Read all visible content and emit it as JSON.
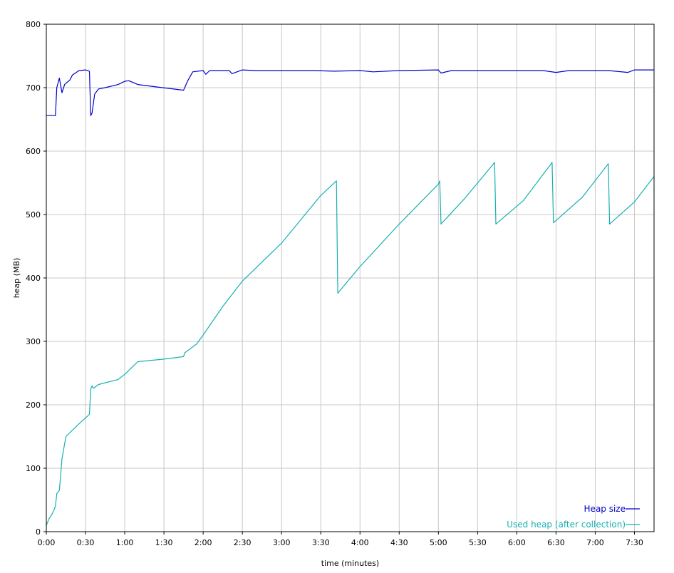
{
  "chart_data": {
    "type": "line",
    "title": "",
    "xlabel": "time (minutes)",
    "ylabel": "heap (MB)",
    "xlim": [
      0,
      465
    ],
    "ylim": [
      0,
      800
    ],
    "grid": true,
    "legend_position": "bottom-right",
    "x_ticks": [
      {
        "value": 0,
        "label": "0:00"
      },
      {
        "value": 30,
        "label": "0:30"
      },
      {
        "value": 60,
        "label": "1:00"
      },
      {
        "value": 90,
        "label": "1:30"
      },
      {
        "value": 120,
        "label": "2:00"
      },
      {
        "value": 150,
        "label": "2:30"
      },
      {
        "value": 180,
        "label": "3:00"
      },
      {
        "value": 210,
        "label": "3:30"
      },
      {
        "value": 240,
        "label": "4:00"
      },
      {
        "value": 270,
        "label": "4:30"
      },
      {
        "value": 300,
        "label": "5:00"
      },
      {
        "value": 330,
        "label": "5:30"
      },
      {
        "value": 360,
        "label": "6:00"
      },
      {
        "value": 390,
        "label": "6:30"
      },
      {
        "value": 420,
        "label": "7:00"
      },
      {
        "value": 450,
        "label": "7:30"
      }
    ],
    "y_ticks": [
      {
        "value": 0,
        "label": "0"
      },
      {
        "value": 100,
        "label": "100"
      },
      {
        "value": 200,
        "label": "200"
      },
      {
        "value": 300,
        "label": "300"
      },
      {
        "value": 400,
        "label": "400"
      },
      {
        "value": 500,
        "label": "500"
      },
      {
        "value": 600,
        "label": "600"
      },
      {
        "value": 700,
        "label": "700"
      },
      {
        "value": 800,
        "label": "800"
      }
    ],
    "series": [
      {
        "name": "Heap size",
        "color": "#0000cc",
        "points": [
          [
            0,
            656
          ],
          [
            7,
            656
          ],
          [
            8,
            700
          ],
          [
            10,
            715
          ],
          [
            12,
            692
          ],
          [
            14,
            705
          ],
          [
            18,
            712
          ],
          [
            20,
            720
          ],
          [
            25,
            727
          ],
          [
            30,
            728
          ],
          [
            33,
            726
          ],
          [
            34,
            656
          ],
          [
            35,
            660
          ],
          [
            37,
            690
          ],
          [
            40,
            698
          ],
          [
            45,
            700
          ],
          [
            55,
            705
          ],
          [
            60,
            710
          ],
          [
            63,
            711
          ],
          [
            70,
            705
          ],
          [
            85,
            701
          ],
          [
            105,
            696
          ],
          [
            108,
            710
          ],
          [
            112,
            725
          ],
          [
            120,
            727
          ],
          [
            122,
            721
          ],
          [
            125,
            727
          ],
          [
            140,
            727
          ],
          [
            142,
            722
          ],
          [
            150,
            728
          ],
          [
            160,
            727
          ],
          [
            180,
            727
          ],
          [
            205,
            727
          ],
          [
            220,
            726
          ],
          [
            240,
            727
          ],
          [
            250,
            725
          ],
          [
            270,
            727
          ],
          [
            300,
            728
          ],
          [
            302,
            723
          ],
          [
            310,
            727
          ],
          [
            340,
            727
          ],
          [
            360,
            727
          ],
          [
            380,
            727
          ],
          [
            390,
            724
          ],
          [
            400,
            727
          ],
          [
            430,
            727
          ],
          [
            445,
            724
          ],
          [
            450,
            728
          ],
          [
            465,
            728
          ]
        ]
      },
      {
        "name": "Used heap (after collection)",
        "color": "#17b0b0",
        "points": [
          [
            0,
            10
          ],
          [
            2,
            20
          ],
          [
            5,
            30
          ],
          [
            7,
            40
          ],
          [
            8,
            60
          ],
          [
            10,
            65
          ],
          [
            11,
            90
          ],
          [
            12,
            115
          ],
          [
            15,
            150
          ],
          [
            20,
            160
          ],
          [
            25,
            170
          ],
          [
            33,
            185
          ],
          [
            34,
            225
          ],
          [
            35,
            230
          ],
          [
            36,
            226
          ],
          [
            40,
            232
          ],
          [
            55,
            240
          ],
          [
            60,
            248
          ],
          [
            65,
            258
          ],
          [
            70,
            268
          ],
          [
            90,
            272
          ],
          [
            105,
            276
          ],
          [
            106,
            282
          ],
          [
            115,
            296
          ],
          [
            120,
            310
          ],
          [
            135,
            355
          ],
          [
            150,
            395
          ],
          [
            180,
            455
          ],
          [
            210,
            530
          ],
          [
            222,
            553
          ],
          [
            223,
            376
          ],
          [
            240,
            418
          ],
          [
            270,
            485
          ],
          [
            300,
            548
          ],
          [
            301,
            553
          ],
          [
            302,
            485
          ],
          [
            320,
            525
          ],
          [
            343,
            582
          ],
          [
            344,
            485
          ],
          [
            365,
            522
          ],
          [
            387,
            582
          ],
          [
            388,
            487
          ],
          [
            410,
            527
          ],
          [
            430,
            580
          ],
          [
            431,
            485
          ],
          [
            450,
            520
          ],
          [
            465,
            560
          ]
        ]
      }
    ]
  }
}
